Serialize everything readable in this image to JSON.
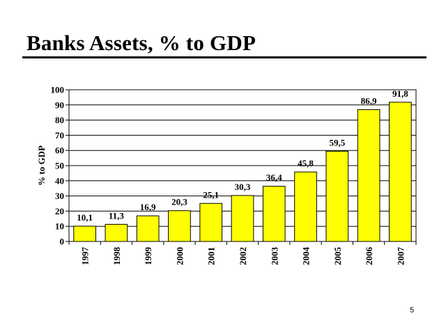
{
  "slide": {
    "title": "Banks Assets, % to GDP",
    "page_number": "5"
  },
  "colors": {
    "bar_fill": "#ffff00",
    "bar_stroke": "#000000",
    "grid": "#000000",
    "text": "#000000"
  },
  "chart_data": {
    "type": "bar",
    "title": "",
    "xlabel": "",
    "ylabel": "% to GDP",
    "categories": [
      "1997",
      "1998",
      "1999",
      "2000",
      "2001",
      "2002",
      "2003",
      "2004",
      "2005",
      "2006",
      "2007"
    ],
    "values": [
      10.1,
      11.3,
      16.9,
      20.3,
      25.1,
      30.3,
      36.4,
      45.8,
      59.5,
      86.9,
      91.8
    ],
    "value_labels": [
      "10,1",
      "11,3",
      "16,9",
      "20,3",
      "25,1",
      "30,3",
      "36,4",
      "45,8",
      "59,5",
      "86,9",
      "91,8"
    ],
    "ylim": [
      0,
      100
    ],
    "yticks": [
      "0",
      "10",
      "20",
      "30",
      "40",
      "50",
      "60",
      "70",
      "80",
      "90",
      "100"
    ],
    "grid": true,
    "legend": false
  }
}
